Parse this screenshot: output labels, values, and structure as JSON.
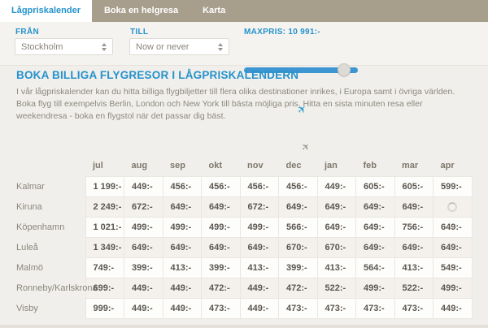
{
  "tabs": [
    {
      "label": "Lågpriskalender",
      "active": true
    },
    {
      "label": "Boka en helgresa",
      "active": false
    },
    {
      "label": "Karta",
      "active": false
    }
  ],
  "filters": {
    "from_label": "FRÅN",
    "from_value": "Stockholm",
    "to_label": "TILL",
    "to_value": "Now or never",
    "maxprice_label": "MAXPRIS: 10 991:-",
    "slider_percent": 88
  },
  "intro": {
    "heading": "BOKA BILLIGA FLYGRESOR I LÅGPRISKALENDERN",
    "body": "I vår lågpriskalender kan du hitta billiga flygbiljetter till flera olika destinationer inrikes, i Europa samt i övriga världen. Boka flyg till exempelvis Berlin, London och New York till bästa möjliga pris. Hitta en sista minuten resa eller weekendresa - boka en flygstol när det passar dig bäst."
  },
  "icons": {
    "plane_glyph": "✈"
  },
  "price_table": {
    "months": [
      "jul",
      "aug",
      "sep",
      "okt",
      "nov",
      "dec",
      "jan",
      "feb",
      "mar",
      "apr"
    ],
    "rows": [
      {
        "city": "Kalmar",
        "prices": [
          "1 199:-",
          "449:-",
          "456:-",
          "456:-",
          "456:-",
          "456:-",
          "449:-",
          "605:-",
          "605:-",
          "599:-"
        ]
      },
      {
        "city": "Kiruna",
        "prices": [
          "2 249:-",
          "672:-",
          "649:-",
          "649:-",
          "672:-",
          "649:-",
          "649:-",
          "649:-",
          "649:-",
          null
        ]
      },
      {
        "city": "Köpenhamn",
        "prices": [
          "1 021:-",
          "499:-",
          "499:-",
          "499:-",
          "499:-",
          "566:-",
          "649:-",
          "649:-",
          "756:-",
          "649:-"
        ]
      },
      {
        "city": "Luleå",
        "prices": [
          "1 349:-",
          "649:-",
          "649:-",
          "649:-",
          "649:-",
          "670:-",
          "670:-",
          "649:-",
          "649:-",
          "649:-"
        ]
      },
      {
        "city": "Malmö",
        "prices": [
          "749:-",
          "399:-",
          "413:-",
          "399:-",
          "413:-",
          "399:-",
          "413:-",
          "564:-",
          "413:-",
          "549:-"
        ]
      },
      {
        "city": "Ronneby/Karlskrona",
        "prices": [
          "699:-",
          "449:-",
          "449:-",
          "472:-",
          "449:-",
          "472:-",
          "522:-",
          "499:-",
          "522:-",
          "499:-"
        ]
      },
      {
        "city": "Visby",
        "prices": [
          "999:-",
          "449:-",
          "449:-",
          "473:-",
          "449:-",
          "473:-",
          "473:-",
          "473:-",
          "473:-",
          "449:-"
        ]
      }
    ]
  },
  "colors": {
    "accent_blue": "#2492cc",
    "slider_blue": "#3d96d2",
    "tabbar_taupe": "#a79e8c",
    "page_bg": "#f1efeb",
    "row_alt_bg": "#f4f1ed",
    "price_text": "#5b564f",
    "muted_text": "#8d8880"
  }
}
